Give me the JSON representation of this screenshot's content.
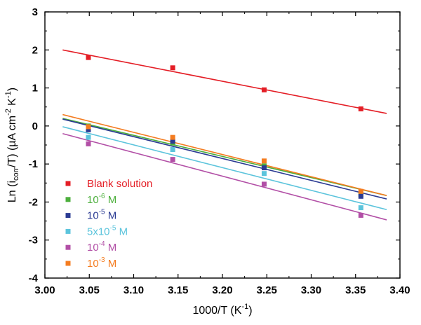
{
  "chart_data": {
    "type": "scatter",
    "xlabel": "1000/T  (K⁻¹)",
    "ylabel": "Ln (i_corr/T) (µA cm⁻² K⁻¹)",
    "xlim": [
      3.0,
      3.4
    ],
    "ylim": [
      -4,
      3
    ],
    "x_ticks": [
      "3.00",
      "3.05",
      "3.10",
      "3.15",
      "3.20",
      "3.25",
      "3.30",
      "3.35",
      "3.40"
    ],
    "y_ticks": [
      "-4",
      "-3",
      "-2",
      "-1",
      "0",
      "1",
      "2",
      "3"
    ],
    "grid": false,
    "legend_position": "lower-left",
    "series": [
      {
        "name": "Blank solution",
        "color": "#e41e26",
        "x": [
          3.049,
          3.144,
          3.247,
          3.356
        ],
        "y": [
          1.8,
          1.53,
          0.95,
          0.45
        ],
        "fit": [
          [
            3.02,
            2.0
          ],
          [
            3.385,
            0.33
          ]
        ]
      },
      {
        "name": "10^-6 M",
        "color": "#4caf3c",
        "x": [
          3.049,
          3.144,
          3.247,
          3.356
        ],
        "y": [
          0.0,
          -0.45,
          -1.05,
          -1.8
        ],
        "fit": [
          [
            3.02,
            0.2
          ],
          [
            3.385,
            -1.83
          ]
        ]
      },
      {
        "name": "10^-5 M",
        "color": "#2b3b93",
        "x": [
          3.049,
          3.144,
          3.247,
          3.356
        ],
        "y": [
          -0.1,
          -0.4,
          -1.1,
          -1.85
        ],
        "fit": [
          [
            3.02,
            0.18
          ],
          [
            3.385,
            -1.92
          ]
        ]
      },
      {
        "name": "5x10^-5 M",
        "color": "#5cc4dc",
        "x": [
          3.049,
          3.144,
          3.247,
          3.356
        ],
        "y": [
          -0.3,
          -0.62,
          -1.25,
          -2.15
        ],
        "fit": [
          [
            3.02,
            -0.02
          ],
          [
            3.385,
            -2.2
          ]
        ]
      },
      {
        "name": "10^-4 M",
        "color": "#b24fa6",
        "x": [
          3.049,
          3.144,
          3.247,
          3.356
        ],
        "y": [
          -0.47,
          -0.88,
          -1.53,
          -2.35
        ],
        "fit": [
          [
            3.02,
            -0.2
          ],
          [
            3.385,
            -2.47
          ]
        ]
      },
      {
        "name": "10^-3 M",
        "color": "#f47c20",
        "x": [
          3.049,
          3.144,
          3.247,
          3.356
        ],
        "y": [
          -0.02,
          -0.3,
          -0.92,
          -1.72
        ],
        "fit": [
          [
            3.02,
            0.3
          ],
          [
            3.385,
            -1.83
          ]
        ]
      }
    ]
  },
  "legend": [
    {
      "base": "Blank solution",
      "sup": "",
      "rest": ""
    },
    {
      "base": "10",
      "sup": "-6",
      "rest": " M"
    },
    {
      "base": "10",
      "sup": "-5",
      "rest": " M"
    },
    {
      "base": "5x10",
      "sup": "-5",
      "rest": " M"
    },
    {
      "base": "10",
      "sup": "-4",
      "rest": " M"
    },
    {
      "base": "10",
      "sup": "-3",
      "rest": " M"
    }
  ],
  "axis_titles": {
    "x": {
      "main": "1000/T  (K",
      "sup": "-1",
      "tail": ")"
    },
    "y": {
      "p1": "Ln (i",
      "sub": "corr",
      "p2": "/T) (µA cm",
      "sup1": "-2",
      "p3": " K",
      "sup2": "-1",
      "p4": ")"
    }
  }
}
